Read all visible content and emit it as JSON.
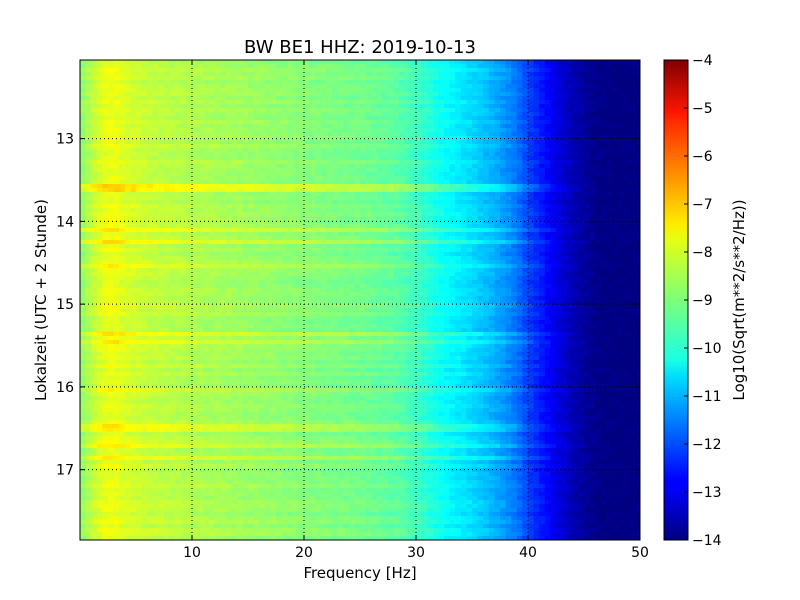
{
  "chart_data": {
    "type": "heatmap",
    "title": "BW BE1 HHZ: 2019-10-13",
    "xlabel": "Frequency [Hz]",
    "ylabel": "Lokalzeit (UTC + 2 Stunde)",
    "colorbar_label": "Log10(Sqrt(m**2/s**2/Hz))",
    "xlim": [
      0,
      50
    ],
    "ylim": [
      17.85,
      12.05
    ],
    "y_inverted": true,
    "xticks": [
      10,
      20,
      30,
      40,
      50
    ],
    "yticks": [
      13,
      14,
      15,
      16,
      17
    ],
    "colorbar_range": [
      -14,
      -4
    ],
    "colorbar_ticks": [
      -4,
      -5,
      -6,
      -7,
      -8,
      -9,
      -10,
      -11,
      -12,
      -13,
      -14
    ],
    "colormap": "jet",
    "grid": true,
    "profile": {
      "frequency_hz": [
        0,
        1,
        2,
        3,
        4,
        6,
        10,
        15,
        20,
        25,
        28,
        30,
        32,
        35,
        37,
        39,
        40,
        42,
        44,
        46,
        48,
        50
      ],
      "log10_amplitude": [
        -8.9,
        -8.4,
        -8.0,
        -7.9,
        -8.1,
        -8.3,
        -8.5,
        -8.7,
        -8.9,
        -9.1,
        -9.3,
        -9.6,
        -10.1,
        -10.6,
        -11.0,
        -11.6,
        -12.1,
        -12.8,
        -13.5,
        -13.9,
        -14.0,
        -14.0
      ]
    },
    "bright_bands": [
      {
        "time_h": 13.6,
        "delta": 0.7
      },
      {
        "time_h": 14.1,
        "delta": 0.6
      },
      {
        "time_h": 14.25,
        "delta": 0.6
      },
      {
        "time_h": 14.55,
        "delta": 0.4
      },
      {
        "time_h": 15.35,
        "delta": 0.5
      },
      {
        "time_h": 15.45,
        "delta": 0.4
      },
      {
        "time_h": 16.05,
        "delta": 0.3
      },
      {
        "time_h": 16.5,
        "delta": 0.4
      },
      {
        "time_h": 16.7,
        "delta": 0.4
      },
      {
        "time_h": 16.85,
        "delta": 0.4
      }
    ]
  }
}
